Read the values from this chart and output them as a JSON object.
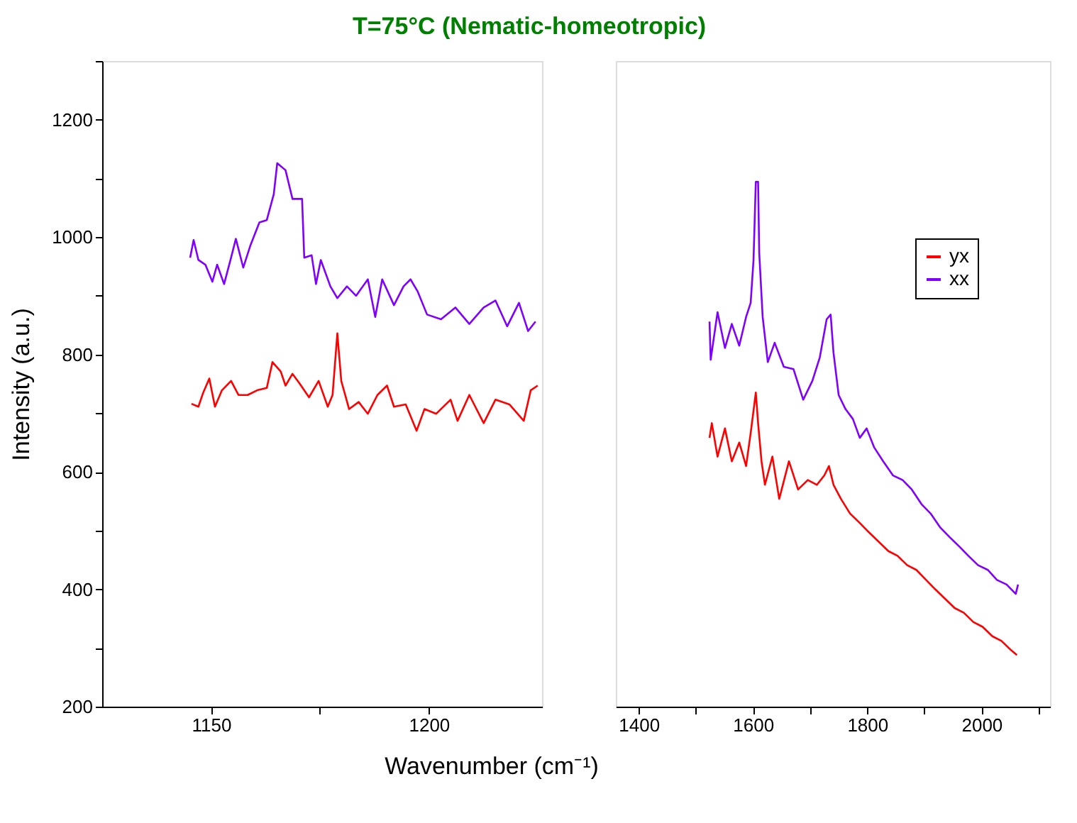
{
  "chart_data": [
    {
      "type": "line",
      "title": "T=75°C (Nematic-homeotropic)",
      "xlabel": "Wavenumber (cm⁻¹)",
      "ylabel": "Intensity (a.u.)",
      "xlim": [
        1125,
        1226
      ],
      "xticks": [
        1150,
        {
          "value": 1175,
          "label": null
        },
        1200
      ],
      "ylim": [
        200,
        1300
      ],
      "yticks": [
        200,
        {
          "value": 300,
          "label": null
        },
        400,
        {
          "value": 500,
          "label": null
        },
        600,
        {
          "value": 700,
          "label": null
        },
        800,
        {
          "value": 900,
          "label": null
        },
        1000,
        {
          "value": 1100,
          "label": null
        },
        1200,
        {
          "value": 1300,
          "label": null
        }
      ],
      "grid": false,
      "series": [
        {
          "color": "#8000ff",
          "x": [
            1145.2,
            1146,
            1147.1,
            1148.7,
            1150.3,
            1151.4,
            1153,
            1154.6,
            1155.7,
            1157.4,
            1159,
            1161.1,
            1162.8,
            1164.4,
            1165.2,
            1167.1,
            1168.7,
            1170.9,
            1171.4,
            1173.1,
            1174.1,
            1175.2,
            1177.4,
            1179,
            1181.2,
            1183.3,
            1186,
            1187.7,
            1189.3,
            1192,
            1194.2,
            1195.8,
            1197.4,
            1199.6,
            1202.8,
            1206.1,
            1209.3,
            1212.6,
            1215.3,
            1218,
            1220.7,
            1222.8,
            1224.5
          ],
          "values": [
            965,
            995,
            961,
            953,
            924,
            953,
            920,
            965,
            997,
            948,
            985,
            1025,
            1029,
            1073,
            1126,
            1114,
            1065,
            1065,
            965,
            969,
            920,
            961,
            916,
            896,
            916,
            900,
            928,
            864,
            928,
            884,
            916,
            928,
            908,
            868,
            860,
            880,
            852,
            880,
            892,
            848,
            888,
            840,
            856
          ]
        },
        {
          "color": "#ff0000",
          "x": [
            1145.5,
            1147.1,
            1148.2,
            1149.6,
            1150.9,
            1152.5,
            1154.6,
            1156.3,
            1158.4,
            1160.6,
            1162.8,
            1164.1,
            1166,
            1167.1,
            1168.7,
            1170.3,
            1172.5,
            1174.7,
            1176.8,
            1177.9,
            1179,
            1179.9,
            1181.7,
            1183.9,
            1186,
            1188.2,
            1190.4,
            1192,
            1194.7,
            1197.2,
            1199,
            1201.7,
            1205,
            1206.6,
            1209.3,
            1212.6,
            1215.3,
            1218.5,
            1221.8,
            1223.4,
            1225
          ],
          "values": [
            716,
            711,
            735,
            759,
            711,
            739,
            755,
            731,
            731,
            739,
            743,
            787,
            771,
            747,
            767,
            751,
            727,
            755,
            711,
            731,
            836,
            755,
            707,
            719,
            699,
            731,
            747,
            711,
            715,
            670,
            707,
            699,
            723,
            687,
            731,
            683,
            723,
            715,
            687,
            739,
            747
          ]
        }
      ]
    },
    {
      "type": "line",
      "xlim": [
        1360,
        2120
      ],
      "xticks": [
        1400,
        {
          "value": 1500,
          "label": null
        },
        1600,
        {
          "value": 1700,
          "label": null
        },
        1800,
        {
          "value": 1900,
          "label": null
        },
        2000,
        {
          "value": 2100,
          "label": null
        }
      ],
      "ylim": [
        200,
        1300
      ],
      "tick_labels": "x",
      "grid": false,
      "legend": "top right",
      "series": [
        {
          "name": "yx",
          "color": "#ff0000",
          "x": [
            1524,
            1528,
            1538,
            1551,
            1563,
            1576,
            1588,
            1596,
            1605,
            1609,
            1615,
            1621,
            1634,
            1646,
            1663,
            1679,
            1696,
            1712,
            1725,
            1733,
            1741,
            1754,
            1770,
            1787,
            1803,
            1820,
            1837,
            1853,
            1870,
            1886,
            1903,
            1919,
            1936,
            1953,
            1969,
            1986,
            2002,
            2019,
            2035,
            2052,
            2062
          ],
          "values": [
            658,
            683,
            626,
            674,
            618,
            650,
            610,
            666,
            735,
            683,
            618,
            578,
            626,
            554,
            618,
            570,
            586,
            578,
            594,
            610,
            578,
            554,
            529,
            513,
            497,
            481,
            465,
            457,
            441,
            433,
            416,
            400,
            384,
            368,
            360,
            344,
            336,
            320,
            312,
            296,
            288
          ]
        },
        {
          "name": "xx",
          "color": "#8000ff",
          "x": [
            1524,
            1526,
            1538,
            1551,
            1563,
            1576,
            1588,
            1596,
            1601,
            1605,
            1609,
            1611,
            1617,
            1626,
            1638,
            1654,
            1671,
            1688,
            1704,
            1717,
            1729,
            1736,
            1741,
            1750,
            1762,
            1775,
            1787,
            1799,
            1812,
            1828,
            1845,
            1862,
            1878,
            1895,
            1911,
            1928,
            1944,
            1961,
            1977,
            1994,
            2011,
            2027,
            2044,
            2060,
            2064
          ],
          "values": [
            856,
            791,
            872,
            811,
            852,
            815,
            864,
            888,
            961,
            1094,
            1094,
            973,
            864,
            787,
            820,
            779,
            775,
            723,
            755,
            795,
            860,
            868,
            803,
            731,
            707,
            690,
            658,
            674,
            642,
            618,
            594,
            586,
            570,
            545,
            529,
            505,
            489,
            473,
            457,
            441,
            433,
            416,
            408,
            392,
            408
          ]
        }
      ]
    }
  ]
}
